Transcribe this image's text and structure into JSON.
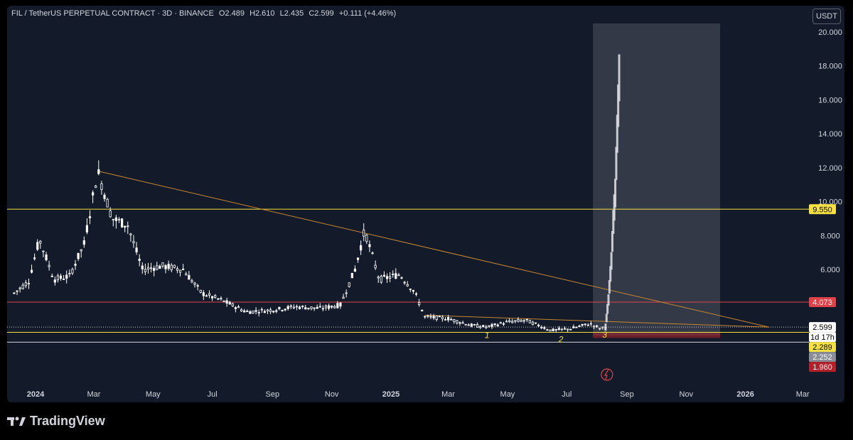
{
  "header": {
    "symbol": "FIL / TetherUS PERPETUAL CONTRACT · 3D · BINANCE",
    "open": "O2.489",
    "high": "H2.610",
    "low": "L2.435",
    "close": "C2.599",
    "change": "+0.111 (+4.46%)",
    "currency_button": "USDT"
  },
  "brand": "TradingView",
  "colors": {
    "background": "#131a2a",
    "yellow_line": "#f5e142",
    "red_line": "#e0424a",
    "trend_line": "#c8872f",
    "candle": "#ffffff",
    "projection": "#4a4e5a"
  },
  "chart_data": {
    "type": "candlestick",
    "ylim": [
      0,
      20.5
    ],
    "ylabel_ticks": [
      "20.000",
      "18.000",
      "16.000",
      "14.000",
      "12.000",
      "10.000",
      "8.000",
      "6.000"
    ],
    "x_ticks": [
      "2024",
      "Mar",
      "May",
      "Jul",
      "Sep",
      "Nov",
      "2025",
      "Mar",
      "May",
      "Jul",
      "Sep",
      "Nov",
      "2026",
      "Mar"
    ],
    "price_path": [
      {
        "date": "2023-12-10",
        "price": 4.6
      },
      {
        "date": "2023-12-25",
        "price": 5.3
      },
      {
        "date": "2024-01-05",
        "price": 7.8
      },
      {
        "date": "2024-01-20",
        "price": 5.4
      },
      {
        "date": "2024-02-05",
        "price": 5.6
      },
      {
        "date": "2024-02-20",
        "price": 7.5
      },
      {
        "date": "2024-03-05",
        "price": 11.8
      },
      {
        "date": "2024-03-20",
        "price": 9.0
      },
      {
        "date": "2024-04-05",
        "price": 8.6
      },
      {
        "date": "2024-04-20",
        "price": 6.0
      },
      {
        "date": "2024-05-10",
        "price": 6.2
      },
      {
        "date": "2024-06-01",
        "price": 6.0
      },
      {
        "date": "2024-06-20",
        "price": 4.6
      },
      {
        "date": "2024-07-10",
        "price": 4.2
      },
      {
        "date": "2024-08-05",
        "price": 3.5
      },
      {
        "date": "2024-09-01",
        "price": 3.6
      },
      {
        "date": "2024-09-25",
        "price": 3.8
      },
      {
        "date": "2024-10-20",
        "price": 3.7
      },
      {
        "date": "2024-11-10",
        "price": 3.9
      },
      {
        "date": "2024-11-25",
        "price": 6.0
      },
      {
        "date": "2024-12-05",
        "price": 8.3
      },
      {
        "date": "2024-12-20",
        "price": 5.4
      },
      {
        "date": "2025-01-10",
        "price": 5.7
      },
      {
        "date": "2025-01-25",
        "price": 4.7
      },
      {
        "date": "2025-02-05",
        "price": 3.2
      },
      {
        "date": "2025-03-01",
        "price": 3.1
      },
      {
        "date": "2025-03-25",
        "price": 2.7
      },
      {
        "date": "2025-04-10",
        "price": 2.6
      },
      {
        "date": "2025-05-01",
        "price": 2.9
      },
      {
        "date": "2025-05-20",
        "price": 3.0
      },
      {
        "date": "2025-06-15",
        "price": 2.4
      },
      {
        "date": "2025-07-05",
        "price": 2.5
      },
      {
        "date": "2025-07-25",
        "price": 2.8
      },
      {
        "date": "2025-08-05",
        "price": 2.5
      },
      {
        "date": "2025-08-10",
        "price": 2.6
      }
    ],
    "projection_path": [
      {
        "date": "2025-08-10",
        "price": 2.6
      },
      {
        "date": "2025-08-13",
        "price": 4.2
      },
      {
        "date": "2025-08-16",
        "price": 6.5
      },
      {
        "date": "2025-08-18",
        "price": 8.8
      },
      {
        "date": "2025-08-20",
        "price": 10.5
      },
      {
        "date": "2025-08-22",
        "price": 14.0
      },
      {
        "date": "2025-08-24",
        "price": 17.3
      }
    ],
    "projection_zone": {
      "from": "2025-07-28",
      "to": "2025-12-06",
      "top": 20.5,
      "bottom": 2.1
    },
    "loss_zone": {
      "from": "2025-07-28",
      "to": "2025-12-06",
      "top": 2.252,
      "bottom": 1.96
    },
    "horizontal_lines": [
      {
        "price": 9.55,
        "color": "#f5e142",
        "label": "9.550"
      },
      {
        "price": 4.073,
        "color": "#e0424a",
        "label": "4.073"
      },
      {
        "price": 2.289,
        "color": "#f5e142",
        "label": "2.289"
      },
      {
        "price": 1.71,
        "color": "#d1d4dc",
        "label": ""
      }
    ],
    "trend_lines": [
      {
        "from": {
          "date": "2024-03-05",
          "price": 11.8
        },
        "to": {
          "date": "2026-01-25",
          "price": 2.6
        }
      },
      {
        "from": {
          "date": "2025-02-05",
          "price": 3.3
        },
        "to": {
          "date": "2026-01-25",
          "price": 2.6
        }
      }
    ],
    "wave_labels": [
      {
        "text": "1",
        "date": "2025-04-10",
        "price": 1.95
      },
      {
        "text": "2",
        "date": "2025-06-25",
        "price": 1.7
      },
      {
        "text": "3",
        "date": "2025-08-09",
        "price": 1.97
      }
    ],
    "price_labels": [
      {
        "text": "9.550",
        "price": 9.55,
        "bg": "#f5e142",
        "fg": "#000000"
      },
      {
        "text": "4.073",
        "price": 4.073,
        "bg": "#e0424a",
        "fg": "#ffffff"
      },
      {
        "text": "2.599",
        "price": 2.599,
        "bg": "#ffffff",
        "fg": "#000000"
      },
      {
        "text": "1d 17h",
        "price": 2.3,
        "bg": "#ffffff",
        "fg": "#000000"
      },
      {
        "text": "2.289",
        "price": 1.95,
        "bg": "#f5e142",
        "fg": "#000000"
      },
      {
        "text": "2.252",
        "price": 1.62,
        "bg": "#8a8d95",
        "fg": "#ffffff"
      },
      {
        "text": "1.960",
        "price": 1.28,
        "bg": "#b3202a",
        "fg": "#ffffff"
      }
    ]
  }
}
